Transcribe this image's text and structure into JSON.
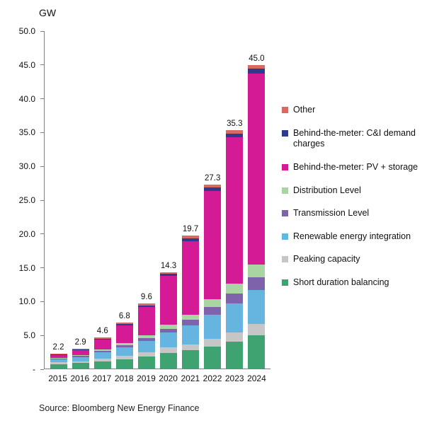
{
  "title": "GW",
  "source": "Source: Bloomberg New Energy Finance",
  "chart_data": {
    "type": "bar",
    "stacked": true,
    "title": "GW",
    "xlabel": "",
    "ylabel": "GW",
    "ylim": [
      0,
      50
    ],
    "grid": false,
    "legend_position": "right",
    "y_tick_labels": [
      "-",
      "5.0",
      "10.0",
      "15.0",
      "20.0",
      "25.0",
      "30.0",
      "35.0",
      "40.0",
      "45.0",
      "50.0"
    ],
    "categories": [
      "2015",
      "2016",
      "2017",
      "2018",
      "2019",
      "2020",
      "2021",
      "2022",
      "2023",
      "2024"
    ],
    "totals": [
      "2.2",
      "2.9",
      "4.6",
      "6.8",
      "9.6",
      "14.3",
      "19.7",
      "27.3",
      "35.3",
      "45.0"
    ],
    "series": [
      {
        "name": "Short duration balancing",
        "color": "#3fa371",
        "values": [
          0.6,
          0.8,
          1.1,
          1.4,
          1.8,
          2.3,
          2.7,
          3.3,
          4.0,
          4.9
        ]
      },
      {
        "name": "Peaking capacity",
        "color": "#c6c6c6",
        "values": [
          0.3,
          0.3,
          0.4,
          0.5,
          0.6,
          0.8,
          0.9,
          1.1,
          1.3,
          1.7
        ]
      },
      {
        "name": "Renewable energy integration",
        "color": "#66b5e0",
        "values": [
          0.5,
          0.6,
          0.9,
          1.3,
          1.7,
          2.2,
          2.8,
          3.6,
          4.3,
          5.0
        ]
      },
      {
        "name": "Transmission Level",
        "color": "#7e62ab",
        "values": [
          0.1,
          0.15,
          0.2,
          0.3,
          0.4,
          0.6,
          0.8,
          1.1,
          1.5,
          1.9
        ]
      },
      {
        "name": "Distribution Level",
        "color": "#a8d5a2",
        "values": [
          0.1,
          0.15,
          0.2,
          0.3,
          0.4,
          0.6,
          0.8,
          1.2,
          1.5,
          1.9
        ]
      },
      {
        "name": "Behind-the-meter: PV + storage",
        "color": "#d41a94",
        "values": [
          0.4,
          0.7,
          1.5,
          2.6,
          4.2,
          7.2,
          10.9,
          16.0,
          21.7,
          28.3
        ]
      },
      {
        "name": "Behind-the-meter: C&I demand charges",
        "color": "#2e3a8c",
        "values": [
          0.1,
          0.1,
          0.15,
          0.2,
          0.25,
          0.3,
          0.4,
          0.5,
          0.5,
          0.7
        ]
      },
      {
        "name": "Other",
        "color": "#d96a62",
        "values": [
          0.1,
          0.1,
          0.15,
          0.2,
          0.25,
          0.3,
          0.4,
          0.5,
          0.5,
          0.6
        ]
      }
    ]
  }
}
